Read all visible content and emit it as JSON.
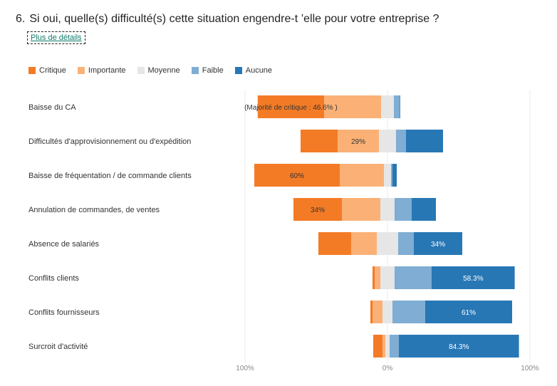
{
  "question": {
    "number": "6.",
    "text": "Si oui, quelle(s) difficulté(s) cette situation engendre-t ’elle pour votre entreprise ?"
  },
  "details_link": "Plus de détails",
  "colors": {
    "Critique": "#f47b26",
    "Importante": "#fbb176",
    "Moyenne": "#e6e6e6",
    "Faible": "#7fadd3",
    "Aucune": "#2877b5"
  },
  "chart_data": {
    "type": "bar",
    "stacked": true,
    "diverging": true,
    "categories": [
      "Baisse du CA",
      "Difficultés d'approvisionnement ou d'expédition",
      "Baisse de fréquentation / de commande clients",
      "Annulation de commandes, de ventes",
      "Absence de salariés",
      "Conflits clients",
      "Conflits fournisseurs",
      "Surcroit d'activité"
    ],
    "series": [
      {
        "name": "Critique",
        "values": [
          46.6,
          26,
          60,
          34,
          23,
          1.5,
          1.5,
          6.5
        ]
      },
      {
        "name": "Importante",
        "values": [
          40,
          29,
          31,
          27,
          18,
          4,
          7,
          2
        ]
      },
      {
        "name": "Moyenne",
        "values": [
          9,
          12,
          5,
          10,
          15,
          10,
          7,
          3
        ]
      },
      {
        "name": "Faible",
        "values": [
          4,
          7,
          1,
          12,
          11,
          26,
          23,
          6.5
        ]
      },
      {
        "name": "Aucune",
        "values": [
          0.4,
          26,
          3,
          17,
          34,
          58.3,
          61,
          84.3
        ]
      }
    ],
    "data_labels": [
      {
        "row": 0,
        "series": "Critique",
        "text": "(Majorité de critique : 46.6% )"
      },
      {
        "row": 1,
        "series": "Importante",
        "text": "29%"
      },
      {
        "row": 2,
        "series": "Critique",
        "text": "60%"
      },
      {
        "row": 3,
        "series": "Critique",
        "text": "34%"
      },
      {
        "row": 4,
        "series": "Aucune",
        "text": "34%"
      },
      {
        "row": 5,
        "series": "Aucune",
        "text": "58.3%"
      },
      {
        "row": 6,
        "series": "Aucune",
        "text": "61%"
      },
      {
        "row": 7,
        "series": "Aucune",
        "text": "84.3%"
      }
    ],
    "x_ticks": [
      "100%",
      "0%",
      "100%"
    ],
    "xlim": [
      -100,
      100
    ],
    "legend_position": "top-left",
    "grid": true
  }
}
